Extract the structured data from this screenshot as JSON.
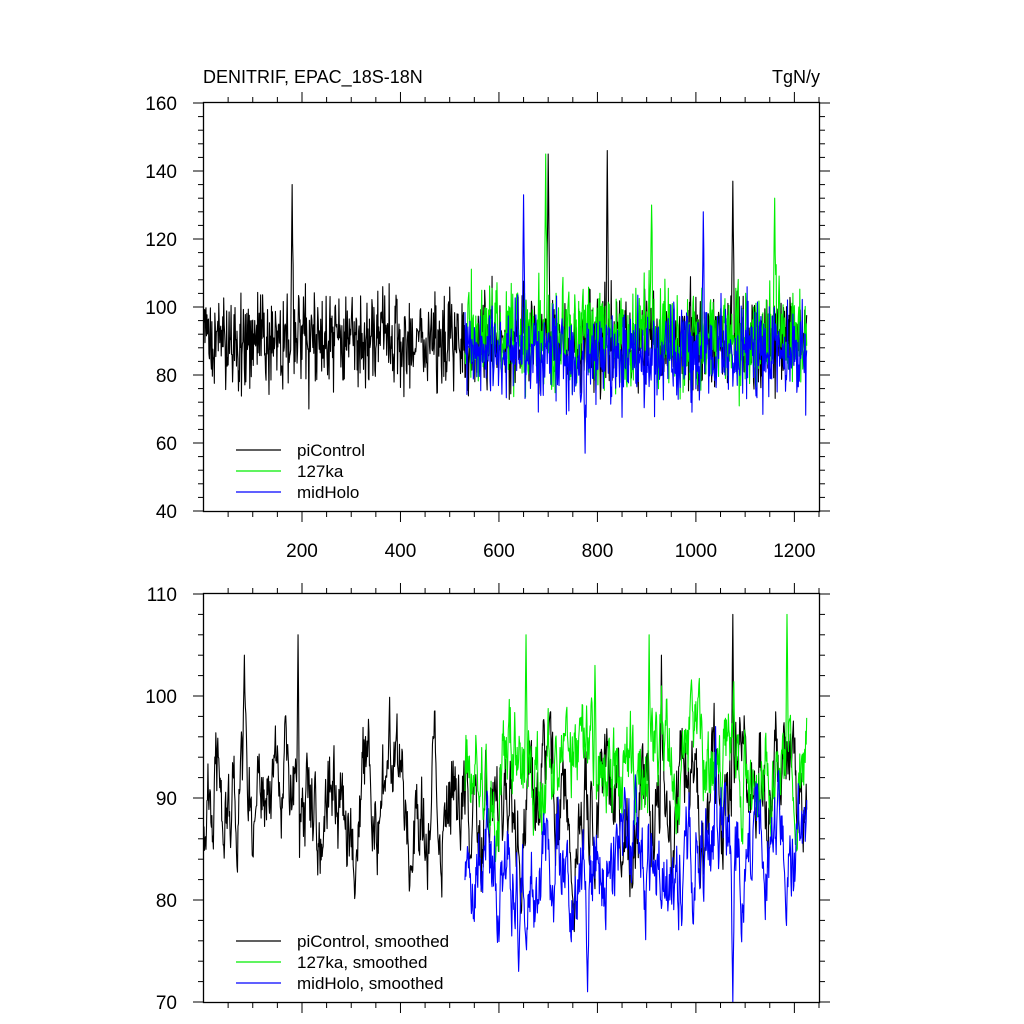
{
  "chart_data": [
    {
      "type": "line",
      "title": "DENITRIF, EPAC_18S-18N",
      "units": "TgN/y",
      "xlim": [
        1,
        1250
      ],
      "ylim": [
        40,
        160
      ],
      "xticks": [
        200,
        400,
        600,
        800,
        1000,
        1200
      ],
      "yticks": [
        40,
        60,
        80,
        100,
        120,
        140,
        160
      ],
      "grid": false,
      "legend_position": "bottom-left",
      "series": [
        {
          "name": "piControl",
          "color": "#000000",
          "x_range": [
            1,
            1225
          ],
          "mean": 90,
          "spread": 22,
          "min": 56,
          "max": 146,
          "peaks": [
            [
              700,
              145
            ],
            [
              820,
              146
            ],
            [
              1075,
              137
            ],
            [
              180,
              136
            ]
          ]
        },
        {
          "name": "127ka",
          "color": "#00ee00",
          "x_range": [
            531,
            1225
          ],
          "mean": 92,
          "spread": 24,
          "min": 58,
          "max": 145,
          "peaks": [
            [
              695,
              145
            ],
            [
              1160,
              132
            ],
            [
              910,
              130
            ]
          ]
        },
        {
          "name": "midHolo",
          "color": "#0000ff",
          "x_range": [
            531,
            1225
          ],
          "mean": 86,
          "spread": 22,
          "min": 57,
          "max": 133,
          "peaks": [
            [
              650,
              133
            ],
            [
              1015,
              128
            ],
            [
              775,
              57
            ]
          ]
        }
      ]
    },
    {
      "type": "line",
      "title": "",
      "xlim": [
        1,
        1250
      ],
      "ylim": [
        70,
        110
      ],
      "yticks": [
        70,
        80,
        90,
        100,
        110
      ],
      "grid": false,
      "legend_position": "bottom-left",
      "series": [
        {
          "name": "piControl, smoothed",
          "color": "#000000",
          "x_range": [
            1,
            1225
          ],
          "mean": 90,
          "spread": 6,
          "min": 75,
          "max": 108,
          "peaks": [
            [
              192,
              106
            ],
            [
              1075,
              108
            ],
            [
              83,
              104
            ],
            [
              930,
              104
            ]
          ]
        },
        {
          "name": "127ka, smoothed",
          "color": "#00ee00",
          "x_range": [
            531,
            1225
          ],
          "mean": 93,
          "spread": 5.5,
          "min": 82,
          "max": 108,
          "peaks": [
            [
              655,
              106
            ],
            [
              905,
              106
            ],
            [
              1185,
              108
            ],
            [
              795,
              103
            ]
          ]
        },
        {
          "name": "midHolo, smoothed",
          "color": "#0000ff",
          "x_range": [
            531,
            1225
          ],
          "mean": 84,
          "spread": 5.5,
          "min": 70,
          "max": 98,
          "peaks": [
            [
              1075,
              70
            ],
            [
              780,
              71
            ],
            [
              640,
              73
            ],
            [
              1040,
              97
            ]
          ]
        }
      ]
    }
  ]
}
